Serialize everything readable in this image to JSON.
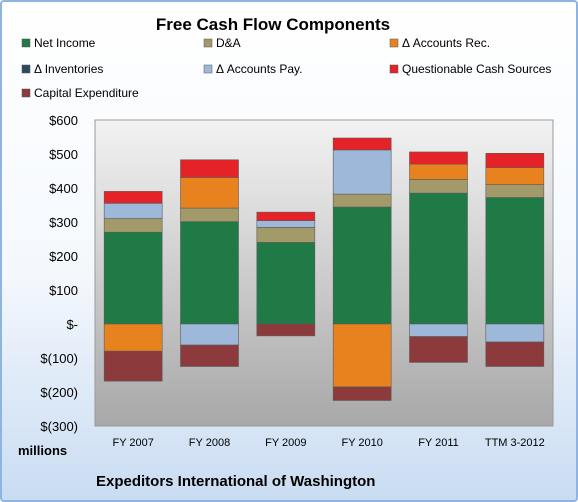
{
  "chart_data": {
    "type": "bar",
    "stacked": true,
    "title": "Free Cash Flow Components",
    "unit_label": "millions",
    "footer": "Expeditors International of Washington",
    "categories": [
      "FY 2007",
      "FY 2008",
      "FY 2009",
      "FY 2010",
      "FY 2011",
      "TTM 3-2012"
    ],
    "ylim": [
      -300,
      600
    ],
    "yticks": [
      600,
      500,
      400,
      300,
      200,
      100,
      0,
      -100,
      -200,
      -300
    ],
    "ytick_labels": [
      "$600",
      "$500",
      "$400",
      "$300",
      "$200",
      "$100",
      "$-",
      "$(100)",
      "$(200)",
      "$(300)"
    ],
    "grid": false,
    "legend_position": "top",
    "series": [
      {
        "name": "Net Income",
        "color": "#1f7a45",
        "values": [
          270,
          301,
          240,
          344,
          385,
          372
        ]
      },
      {
        "name": "D&A",
        "color": "#a39a6a",
        "values": [
          40,
          40,
          44,
          38,
          40,
          38
        ]
      },
      {
        "name": "Δ Accounts Rec.",
        "color": "#e8821f",
        "values": [
          -80,
          90,
          0,
          -185,
          45,
          50
        ]
      },
      {
        "name": "Δ Inventories",
        "color": "#2b4a5e",
        "values": [
          0,
          0,
          0,
          0,
          0,
          0
        ]
      },
      {
        "name": "Δ Accounts Pay.",
        "color": "#9db8d9",
        "values": [
          45,
          -62,
          20,
          130,
          -37,
          -53
        ]
      },
      {
        "name": "Questionable Cash Sources",
        "color": "#e52227",
        "values": [
          35,
          52,
          25,
          35,
          36,
          42
        ]
      },
      {
        "name": "Capital Expenditure",
        "color": "#8c3a3c",
        "values": [
          -88,
          -63,
          -35,
          -40,
          -76,
          -72
        ]
      }
    ]
  }
}
